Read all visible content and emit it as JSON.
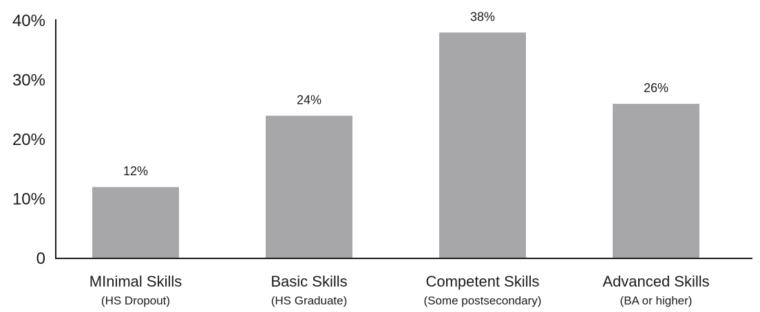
{
  "chart_data": {
    "type": "bar",
    "title": "",
    "xlabel": "",
    "ylabel": "",
    "categories": [
      "MInimal Skills",
      "Basic Skills",
      "Competent Skills",
      "Advanced Skills"
    ],
    "subcategories": [
      "(HS Dropout)",
      "(HS Graduate)",
      "(Some postsecondary)",
      "(BA or higher)"
    ],
    "values": [
      12,
      24,
      38,
      26
    ],
    "data_labels": [
      "12%",
      "24%",
      "38%",
      "26%"
    ],
    "ylim": [
      0,
      40
    ],
    "yticks": [
      0,
      10,
      20,
      30,
      40
    ],
    "ytick_labels": [
      "0",
      "10%",
      "20%",
      "30%",
      "40%"
    ],
    "grid": false,
    "legend": "none",
    "colors": {
      "bar": "#a7a7aa",
      "axis": "#1a1a1a",
      "text": "#1a1a1a"
    }
  }
}
